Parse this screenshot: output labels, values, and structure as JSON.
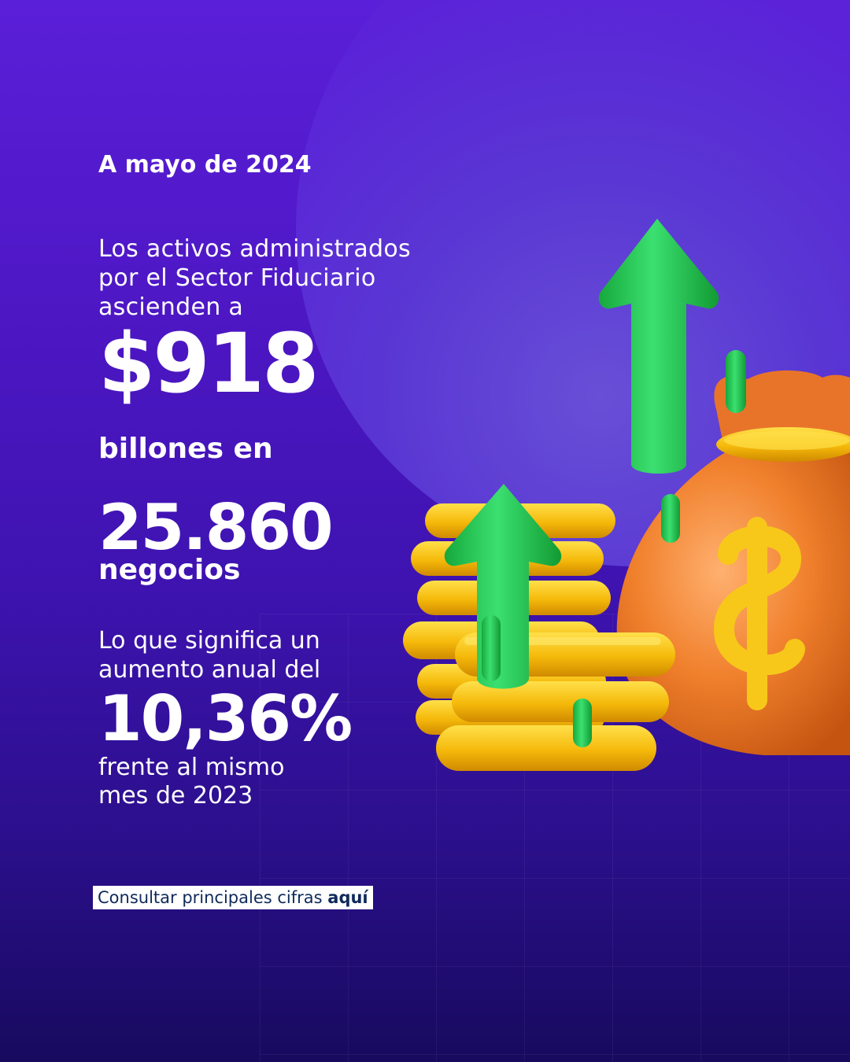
{
  "headline_date": "A mayo de 2024",
  "intro_lines": [
    "Los activos administrados",
    "por el Sector Fiduciario",
    "ascienden a"
  ],
  "amount": "$918",
  "amount_unit": "billones en",
  "business_count": "25.860",
  "business_label": "negocios",
  "growth_intro_lines": [
    "Lo que significa un",
    "aumento anual del"
  ],
  "growth_percent": "10,36%",
  "growth_outro_lines": [
    "frente al mismo",
    "mes de 2023"
  ],
  "cta": {
    "text": "Consultar principales cifras ",
    "link": "aquí"
  },
  "colors": {
    "background": "#4d17c4",
    "arrow": "#1fbf4a",
    "coin": "#f5b90a",
    "bag": "#f07d2a",
    "cta_text": "#0f2a5a"
  },
  "illustration": [
    "money-bag-icon",
    "dollar-sign-icon",
    "coin-stack-icon",
    "up-arrow-icon"
  ]
}
